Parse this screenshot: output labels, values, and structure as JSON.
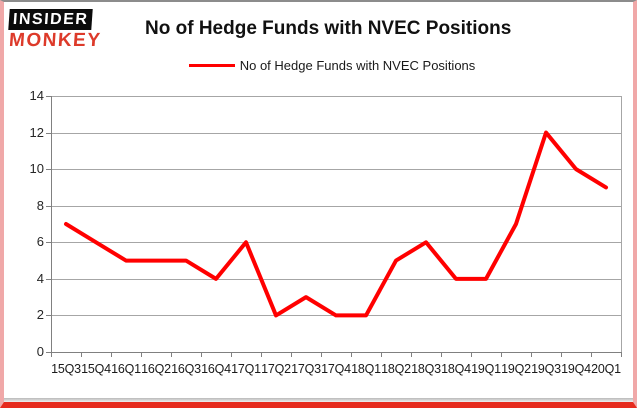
{
  "logo": {
    "line1": "INSIDER",
    "line2": "MONKEY"
  },
  "header": {
    "title": "No of Hedge Funds with NVEC Positions"
  },
  "legend": {
    "label": "No of Hedge Funds with NVEC Positions"
  },
  "chart_data": {
    "type": "line",
    "title": "No of Hedge Funds with NVEC Positions",
    "categories": [
      "15Q3",
      "15Q4",
      "16Q1",
      "16Q2",
      "16Q3",
      "16Q4",
      "17Q1",
      "17Q2",
      "17Q3",
      "17Q4",
      "18Q1",
      "18Q2",
      "18Q3",
      "18Q4",
      "19Q1",
      "19Q2",
      "19Q3",
      "19Q4",
      "20Q1"
    ],
    "series": [
      {
        "name": "No of Hedge Funds with NVEC Positions",
        "values": [
          7,
          6,
          5,
          5,
          5,
          4,
          6,
          2,
          3,
          2,
          2,
          5,
          6,
          4,
          4,
          7,
          12,
          10,
          9
        ],
        "color": "#ff0000"
      }
    ],
    "xlabel": "",
    "ylabel": "",
    "ylim": [
      0,
      14
    ],
    "yticks": [
      0,
      2,
      4,
      6,
      8,
      10,
      12,
      14
    ],
    "grid": true,
    "legend_position": "top"
  },
  "colors": {
    "line": "#ff0000",
    "gridline": "#a6a6a6",
    "axis": "#808080",
    "text": "#262626",
    "logo_red": "#dd3a2a",
    "logo_black": "#0b0b0b",
    "frame_side": "#f0a8a8",
    "frame_bottom": "#e62b1e",
    "frame_top": "#8c8c8c"
  }
}
